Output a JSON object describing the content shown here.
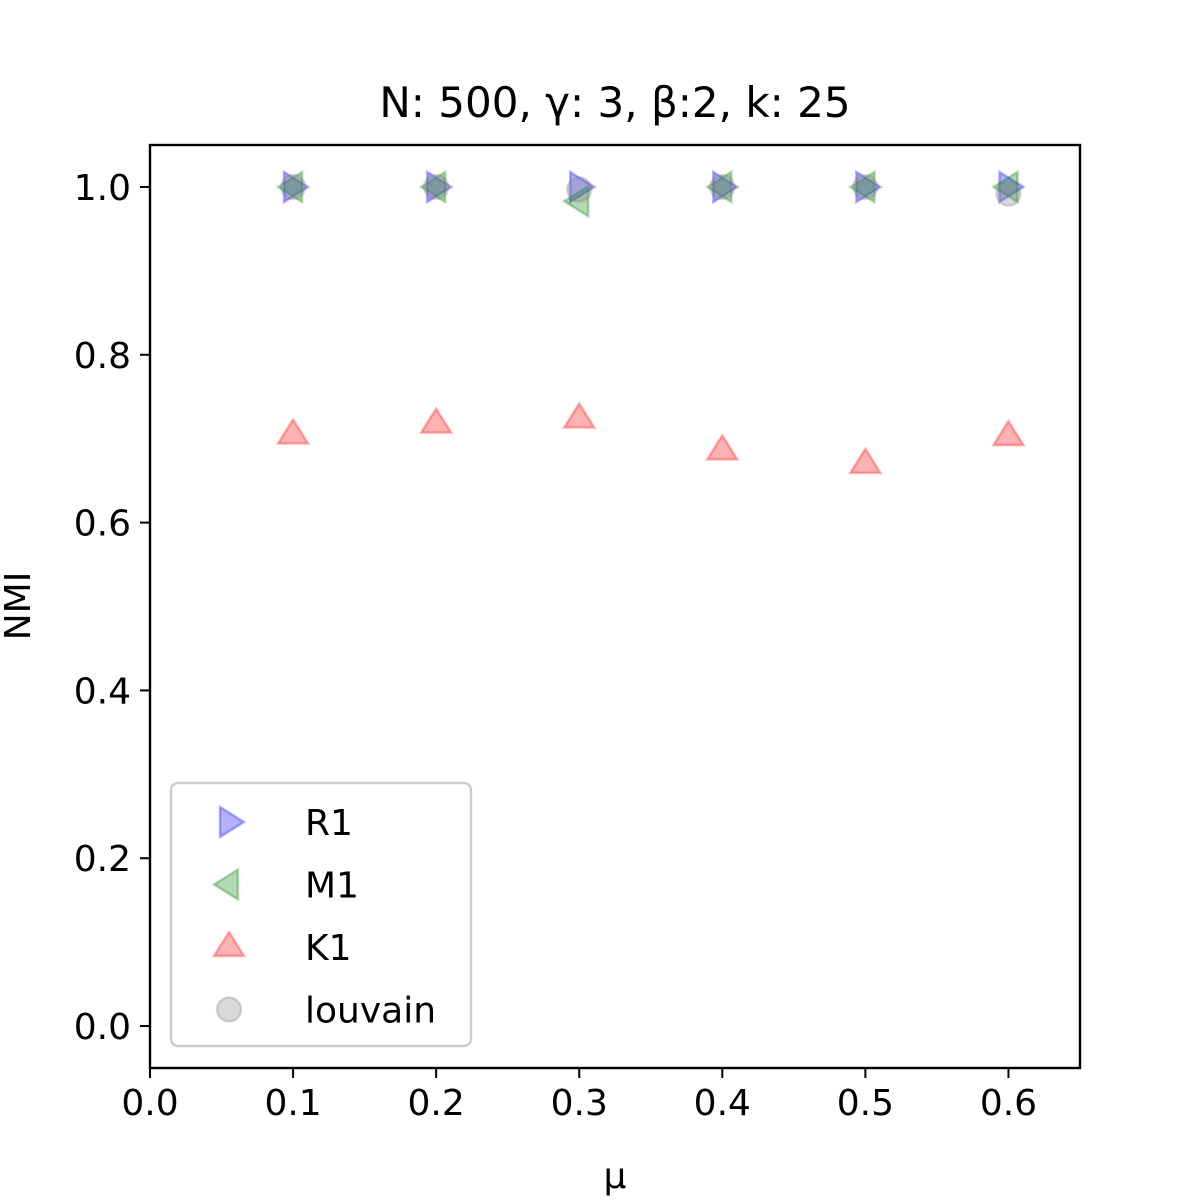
{
  "chart_data": {
    "type": "scatter",
    "title": "N: 500, γ: 3, β:2, k: 25",
    "xlabel": "μ",
    "ylabel": "NMI",
    "xlim": [
      0.0,
      0.65
    ],
    "ylim": [
      -0.05,
      1.05
    ],
    "xticks": [
      0.0,
      0.1,
      0.2,
      0.3,
      0.4,
      0.5,
      0.6
    ],
    "xtick_labels": [
      "0.0",
      "0.1",
      "0.2",
      "0.3",
      "0.4",
      "0.5",
      "0.6"
    ],
    "yticks": [
      0.0,
      0.2,
      0.4,
      0.6,
      0.8,
      1.0
    ],
    "ytick_labels": [
      "0.0",
      "0.2",
      "0.4",
      "0.6",
      "0.8",
      "1.0"
    ],
    "grid": false,
    "legend_position": "lower-left",
    "series": [
      {
        "name": "R1",
        "marker": "triangle-right",
        "color": "#0000ff",
        "x": [
          0.1,
          0.2,
          0.3,
          0.4,
          0.5,
          0.6
        ],
        "y": [
          1.0,
          1.0,
          1.0,
          1.0,
          1.0,
          1.0
        ]
      },
      {
        "name": "M1",
        "marker": "triangle-left",
        "color": "#008000",
        "x": [
          0.1,
          0.2,
          0.3,
          0.4,
          0.5,
          0.6
        ],
        "y": [
          1.0,
          1.0,
          0.983,
          1.0,
          1.0,
          1.0
        ]
      },
      {
        "name": "K1",
        "marker": "triangle-up",
        "color": "#ff0000",
        "x": [
          0.1,
          0.2,
          0.3,
          0.4,
          0.5,
          0.6
        ],
        "y": [
          0.705,
          0.718,
          0.724,
          0.686,
          0.67,
          0.703
        ]
      },
      {
        "name": "louvain",
        "marker": "circle",
        "color": "#808080",
        "x": [
          0.1,
          0.2,
          0.3,
          0.4,
          0.5,
          0.6
        ],
        "y": [
          1.0,
          1.0,
          0.997,
          1.0,
          1.0,
          0.992
        ]
      }
    ]
  }
}
